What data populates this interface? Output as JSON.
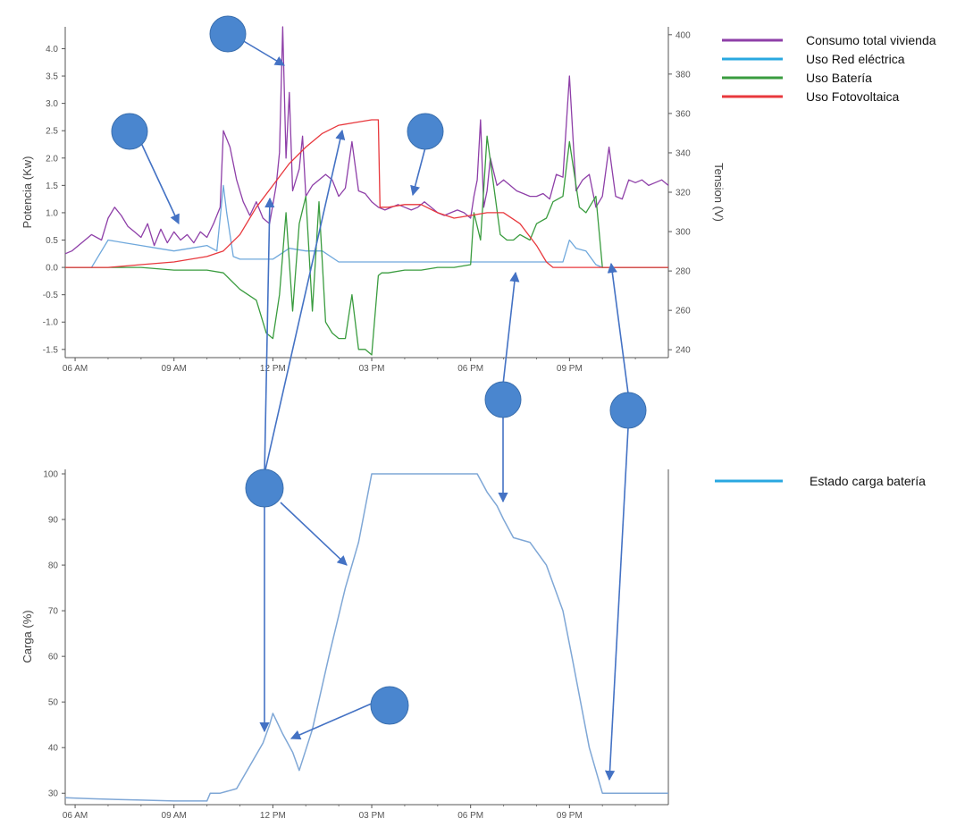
{
  "chart_data": [
    {
      "type": "line",
      "title": "",
      "ylabel": "Potencia (Kw)",
      "y2label": "Tension (V)",
      "xlim": [
        5.7,
        24.0
      ],
      "ylim": [
        -1.65,
        4.4
      ],
      "y2lim": [
        236,
        404
      ],
      "x_tick_labels": [
        "06 AM",
        "09 AM",
        "12 PM",
        "03 PM",
        "06 PM",
        "09 PM"
      ],
      "x_tick_values": [
        6,
        9,
        12,
        15,
        18,
        21
      ],
      "y_ticks": [
        4.0,
        3.5,
        3.0,
        2.5,
        2.0,
        1.5,
        1.0,
        0.5,
        0.0,
        -0.5,
        -1.0,
        -1.5
      ],
      "y_tick_labels": [
        "4.0",
        "3.5",
        "3.0",
        "2.5",
        "2.0",
        "1.5",
        "1.0",
        "0.5",
        "0.0",
        "-0.5",
        "-1.0",
        "-1.5"
      ],
      "y2_ticks": [
        400,
        380,
        360,
        340,
        320,
        300,
        280,
        260,
        240
      ],
      "legend_position": "right",
      "series": [
        {
          "name": "Consumo total vivienda",
          "color": "#8e3fa8",
          "x": [
            5.7,
            5.9,
            6.2,
            6.5,
            6.8,
            7.0,
            7.2,
            7.4,
            7.6,
            7.8,
            8.0,
            8.2,
            8.4,
            8.6,
            8.8,
            9.0,
            9.2,
            9.4,
            9.6,
            9.8,
            10.0,
            10.2,
            10.4,
            10.5,
            10.7,
            10.9,
            11.1,
            11.3,
            11.5,
            11.7,
            11.9,
            12.1,
            12.2,
            12.3,
            12.4,
            12.5,
            12.6,
            12.7,
            12.8,
            12.9,
            13.0,
            13.2,
            13.4,
            13.6,
            13.8,
            14.0,
            14.2,
            14.4,
            14.6,
            14.8,
            15.0,
            15.2,
            15.4,
            15.6,
            15.8,
            16.0,
            16.2,
            16.4,
            16.6,
            16.8,
            17.0,
            17.2,
            17.4,
            17.6,
            17.8,
            18.0,
            18.1,
            18.2,
            18.3,
            18.4,
            18.5,
            18.6,
            18.8,
            19.0,
            19.2,
            19.4,
            19.6,
            19.8,
            20.0,
            20.2,
            20.4,
            20.6,
            20.8,
            21.0,
            21.2,
            21.4,
            21.6,
            21.8,
            22.0,
            22.2,
            22.4,
            22.6,
            22.8,
            23.0,
            23.2,
            23.4,
            23.6,
            23.8,
            24.0
          ],
          "y": [
            0.25,
            0.3,
            0.45,
            0.6,
            0.5,
            0.9,
            1.1,
            0.95,
            0.75,
            0.65,
            0.55,
            0.8,
            0.4,
            0.7,
            0.45,
            0.65,
            0.5,
            0.6,
            0.45,
            0.65,
            0.55,
            0.8,
            1.1,
            2.5,
            2.2,
            1.6,
            1.2,
            0.95,
            1.2,
            0.9,
            0.8,
            1.5,
            2.1,
            4.4,
            2.0,
            3.2,
            1.4,
            1.6,
            1.8,
            2.4,
            1.3,
            1.5,
            1.6,
            1.7,
            1.6,
            1.3,
            1.45,
            2.3,
            1.4,
            1.35,
            1.2,
            1.1,
            1.05,
            1.1,
            1.15,
            1.1,
            1.05,
            1.1,
            1.2,
            1.1,
            1.0,
            0.95,
            1.0,
            1.05,
            1.0,
            0.9,
            1.3,
            1.6,
            2.7,
            1.1,
            1.4,
            2.0,
            1.5,
            1.6,
            1.5,
            1.4,
            1.35,
            1.3,
            1.3,
            1.35,
            1.25,
            1.7,
            1.65,
            3.5,
            1.4,
            1.6,
            1.7,
            1.1,
            1.3,
            2.2,
            1.3,
            1.25,
            1.6,
            1.55,
            1.6,
            1.5,
            1.55,
            1.6,
            1.5
          ]
        },
        {
          "name": "Uso Red eléctrica",
          "color": "#6fa8dc",
          "x": [
            5.7,
            6.5,
            7.0,
            7.5,
            8.0,
            8.5,
            9.0,
            9.5,
            10.0,
            10.3,
            10.5,
            10.6,
            10.8,
            11.0,
            11.2,
            11.5,
            12.0,
            12.5,
            13.0,
            13.5,
            14.0,
            14.5,
            15.0,
            15.5,
            16.0,
            17.0,
            18.0,
            18.5,
            19.0,
            19.5,
            20.0,
            20.5,
            20.8,
            21.0,
            21.2,
            21.5,
            21.8,
            22.0,
            22.5,
            23.0,
            24.0
          ],
          "y": [
            0.0,
            0.0,
            0.5,
            0.45,
            0.4,
            0.35,
            0.3,
            0.35,
            0.4,
            0.3,
            1.5,
            1.0,
            0.2,
            0.15,
            0.15,
            0.15,
            0.15,
            0.35,
            0.3,
            0.3,
            0.1,
            0.1,
            0.1,
            0.1,
            0.1,
            0.1,
            0.1,
            0.1,
            0.1,
            0.1,
            0.1,
            0.1,
            0.1,
            0.5,
            0.35,
            0.3,
            0.05,
            0.0,
            0.0,
            0.0,
            0.0
          ]
        },
        {
          "name": "Uso Batería",
          "color": "#3a9c3f",
          "x": [
            5.7,
            8.0,
            9.0,
            10.0,
            10.5,
            11.0,
            11.5,
            11.8,
            12.0,
            12.2,
            12.4,
            12.6,
            12.8,
            13.0,
            13.2,
            13.4,
            13.6,
            13.8,
            14.0,
            14.2,
            14.4,
            14.6,
            14.8,
            15.0,
            15.2,
            15.3,
            15.5,
            16.0,
            16.5,
            17.0,
            17.5,
            18.0,
            18.1,
            18.3,
            18.5,
            18.7,
            18.9,
            19.1,
            19.3,
            19.5,
            19.8,
            20.0,
            20.3,
            20.5,
            20.8,
            21.0,
            21.3,
            21.5,
            21.8,
            22.0,
            22.5,
            23.0,
            24.0
          ],
          "y": [
            0.0,
            0.0,
            -0.05,
            -0.05,
            -0.1,
            -0.4,
            -0.6,
            -1.2,
            -1.3,
            -0.5,
            1.0,
            -0.8,
            0.8,
            1.3,
            -0.8,
            1.2,
            -1.0,
            -1.2,
            -1.3,
            -1.3,
            -0.5,
            -1.5,
            -1.5,
            -1.6,
            -0.15,
            -0.1,
            -0.1,
            -0.05,
            -0.05,
            0.0,
            0.0,
            0.05,
            1.0,
            0.5,
            2.4,
            1.5,
            0.6,
            0.5,
            0.5,
            0.6,
            0.5,
            0.8,
            0.9,
            1.2,
            1.3,
            2.3,
            1.1,
            1.0,
            1.3,
            0.0,
            0.0,
            0.0,
            0.0
          ]
        },
        {
          "name": "Uso Fotovoltaica",
          "color": "#e8383d",
          "x": [
            5.7,
            7.0,
            8.0,
            9.0,
            10.0,
            10.5,
            11.0,
            11.5,
            12.0,
            12.5,
            13.0,
            13.5,
            14.0,
            14.5,
            15.0,
            15.2,
            15.25,
            15.5,
            16.0,
            16.5,
            17.0,
            17.5,
            18.0,
            18.5,
            19.0,
            19.5,
            20.0,
            20.3,
            20.5,
            21.0,
            22.0,
            23.0,
            24.0
          ],
          "y": [
            0.0,
            0.0,
            0.05,
            0.1,
            0.2,
            0.3,
            0.6,
            1.1,
            1.5,
            1.9,
            2.2,
            2.45,
            2.6,
            2.65,
            2.7,
            2.7,
            1.1,
            1.1,
            1.15,
            1.15,
            1.0,
            0.9,
            0.95,
            1.0,
            1.0,
            0.8,
            0.4,
            0.1,
            0.0,
            0.0,
            0.0,
            0.0,
            0.0
          ]
        }
      ]
    },
    {
      "type": "line",
      "title": "",
      "ylabel": "Carga (%)",
      "xlim": [
        5.7,
        24.0
      ],
      "ylim": [
        27.5,
        100
      ],
      "x_tick_labels": [
        "06 AM",
        "09 AM",
        "12 PM",
        "03 PM",
        "06 PM",
        "09 PM"
      ],
      "x_tick_values": [
        6,
        9,
        12,
        15,
        18,
        21
      ],
      "y_ticks": [
        100,
        90,
        80,
        70,
        60,
        50,
        40,
        30
      ],
      "legend_position": "right",
      "series": [
        {
          "name": "Estado carga batería",
          "color": "#7fa7d6",
          "x": [
            5.7,
            6.5,
            8.0,
            9.0,
            10.0,
            10.1,
            10.4,
            10.9,
            11.3,
            11.7,
            11.9,
            12.0,
            12.1,
            12.3,
            12.6,
            12.8,
            13.2,
            13.7,
            14.2,
            14.6,
            15.0,
            15.5,
            16.5,
            17.5,
            18.2,
            18.5,
            18.8,
            19.0,
            19.3,
            19.8,
            20.3,
            20.8,
            21.1,
            21.6,
            22.0,
            22.5,
            23.5,
            24.0
          ],
          "y": [
            29.0,
            28.8,
            28.5,
            28.3,
            28.3,
            30.0,
            30.0,
            31.0,
            36.0,
            41.0,
            45.0,
            47.5,
            46.0,
            43.0,
            39.0,
            35.0,
            44.0,
            60.0,
            75.0,
            85.0,
            100.0,
            100.0,
            100.0,
            100.0,
            100.0,
            96.0,
            93.0,
            90.0,
            86.0,
            85.0,
            80.0,
            70.0,
            59.0,
            40.0,
            30.0,
            30.0,
            30.0,
            30.0
          ]
        }
      ]
    }
  ]
}
